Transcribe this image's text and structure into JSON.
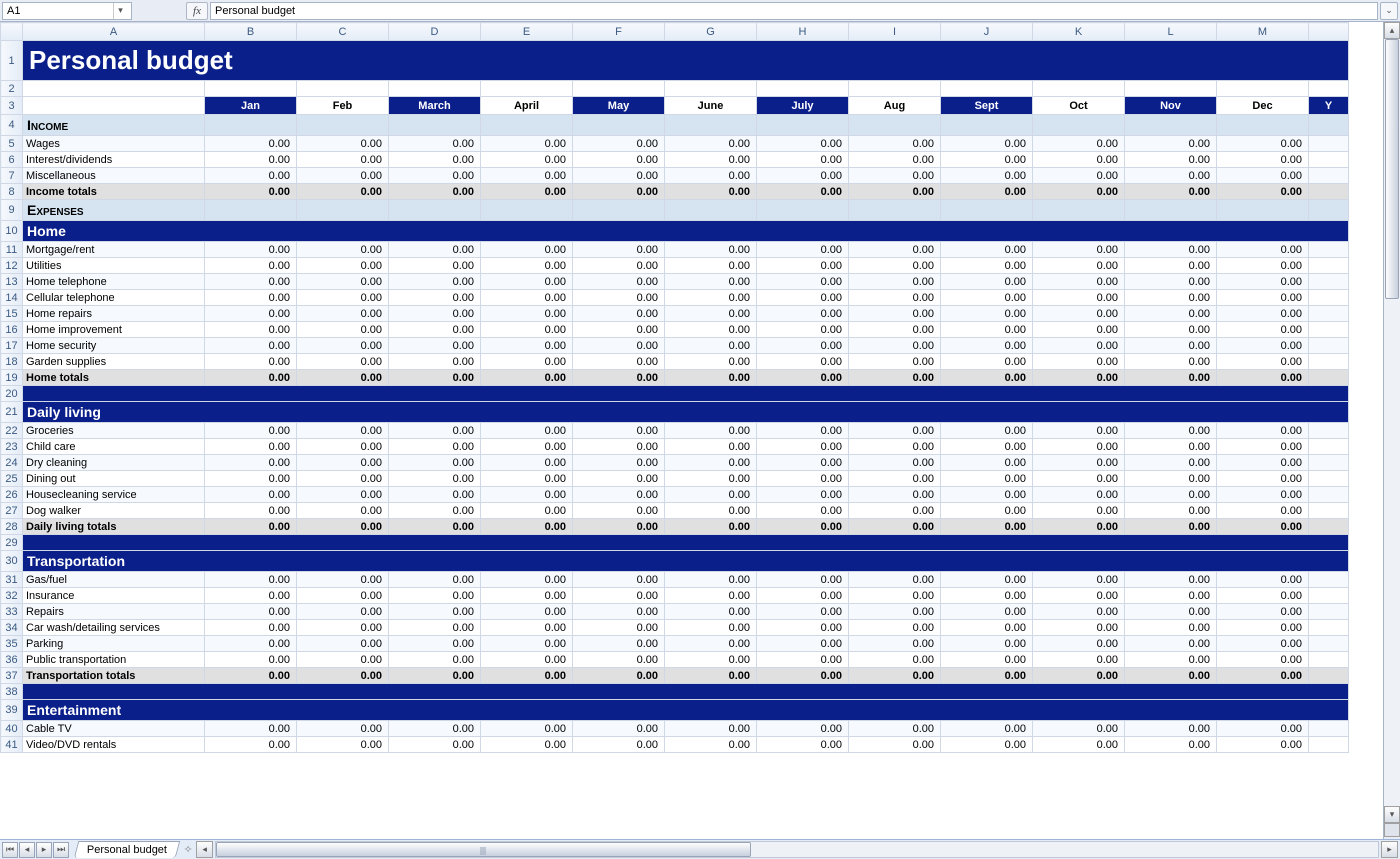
{
  "nameBox": "A1",
  "fx": "fx",
  "formulaValue": "Personal budget",
  "sheetTab": "Personal budget",
  "columns": [
    "A",
    "B",
    "C",
    "D",
    "E",
    "F",
    "G",
    "H",
    "I",
    "J",
    "K",
    "L",
    "M"
  ],
  "colWidths": {
    "rowHdr": 22,
    "A": 182,
    "other": 92,
    "Mpartial": 40
  },
  "months": [
    "Jan",
    "Feb",
    "March",
    "April",
    "May",
    "June",
    "July",
    "Aug",
    "Sept",
    "Oct",
    "Nov",
    "Dec"
  ],
  "yearLabel": "Y",
  "title": "Personal budget",
  "zeroVal": "0.00",
  "sections": [
    {
      "rowStart": 4,
      "type": "sec-lightblue",
      "name": "Income",
      "rows": [
        "Wages",
        "Interest/dividends",
        "Miscellaneous"
      ],
      "totalsLabel": "Income totals",
      "spacerAfter": false,
      "lightSection": true
    },
    {
      "rowStart": 9,
      "type": "sec-lightblue",
      "name": "Expenses",
      "rows": [],
      "noTotals": true
    },
    {
      "rowStart": 10,
      "type": "sec-navy",
      "name": "Home",
      "rows": [
        "Mortgage/rent",
        "Utilities",
        "Home telephone",
        "Cellular telephone",
        "Home repairs",
        "Home improvement",
        "Home security",
        "Garden supplies"
      ],
      "totalsLabel": "Home totals",
      "spacerAfter": true
    },
    {
      "rowStart": 21,
      "type": "sec-navy",
      "name": "Daily living",
      "rows": [
        "Groceries",
        "Child care",
        "Dry cleaning",
        "Dining out",
        "Housecleaning service",
        "Dog walker"
      ],
      "totalsLabel": "Daily living totals",
      "spacerAfter": true
    },
    {
      "rowStart": 30,
      "type": "sec-navy",
      "name": "Transportation",
      "rows": [
        "Gas/fuel",
        "Insurance",
        "Repairs",
        "Car wash/detailing services",
        "Parking",
        "Public transportation"
      ],
      "totalsLabel": "Transportation totals",
      "spacerAfter": true
    },
    {
      "rowStart": 39,
      "type": "sec-navy",
      "name": "Entertainment",
      "rows": [
        "Cable TV",
        "Video/DVD rentals"
      ],
      "totalsLabel": "",
      "spacerAfter": false
    }
  ],
  "colors": {
    "navy": "#0b1f8a",
    "lightBlue": "#d6e4f2",
    "zebraLight": "#f6f9fd",
    "totalsGrey": "#e0e0e0",
    "gridBorder": "#d0d7e5"
  }
}
